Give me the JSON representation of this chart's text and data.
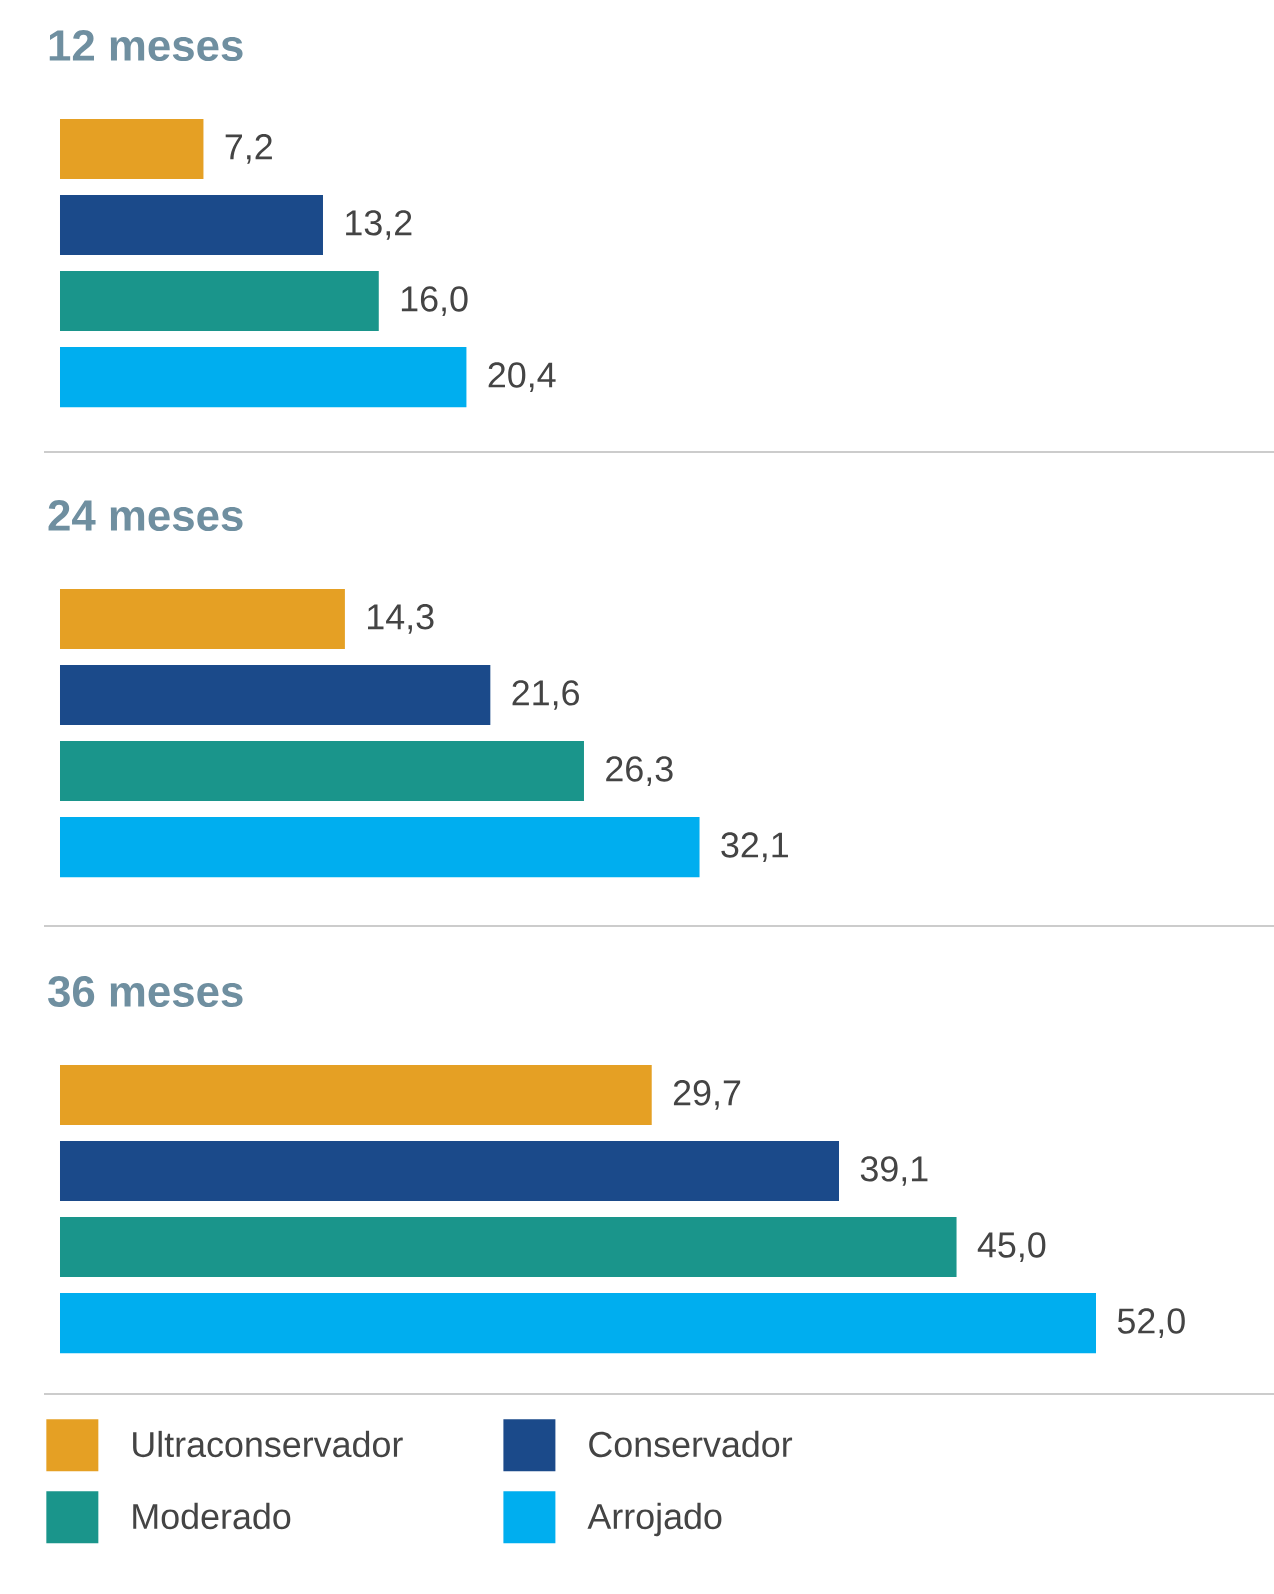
{
  "chart_data": [
    {
      "type": "bar",
      "orientation": "horizontal",
      "title": "12 meses",
      "categories": [
        null
      ],
      "tick_labels": false,
      "series": [
        {
          "color": "#e5a024",
          "values": [
            7.2
          ],
          "value_labels": [
            "7,2"
          ]
        },
        {
          "color": "#1b4a8a",
          "values": [
            13.2
          ],
          "value_labels": [
            "13,2"
          ]
        },
        {
          "color": "#1a958b",
          "values": [
            16.0
          ],
          "value_labels": [
            "16,0"
          ]
        },
        {
          "color": "#00aeef",
          "values": [
            20.4
          ],
          "value_labels": [
            "20,4"
          ]
        }
      ]
    },
    {
      "type": "bar",
      "orientation": "horizontal",
      "title": "24 meses",
      "categories": [
        null
      ],
      "tick_labels": false,
      "series": [
        {
          "color": "#e5a024",
          "values": [
            14.3
          ],
          "value_labels": [
            "14,3"
          ]
        },
        {
          "color": "#1b4a8a",
          "values": [
            21.6
          ],
          "value_labels": [
            "21,6"
          ]
        },
        {
          "color": "#1a958b",
          "values": [
            26.3
          ],
          "value_labels": [
            "26,3"
          ]
        },
        {
          "color": "#00aeef",
          "values": [
            32.1
          ],
          "value_labels": [
            "32,1"
          ]
        }
      ]
    },
    {
      "type": "bar",
      "orientation": "horizontal",
      "title": "36 meses",
      "categories": [
        null
      ],
      "tick_labels": false,
      "legend": "bottom",
      "series": [
        {
          "name": "Ultraconservador",
          "color": "#e5a024",
          "values": [
            29.7
          ],
          "value_labels": [
            "29,7"
          ]
        },
        {
          "name": "Conservador",
          "color": "#1b4a8a",
          "values": [
            39.1
          ],
          "value_labels": [
            "39,1"
          ]
        },
        {
          "name": "Moderado",
          "color": "#1a958b",
          "values": [
            45.0
          ],
          "value_labels": [
            "45,0"
          ]
        },
        {
          "name": "Arrojado",
          "color": "#00aeef",
          "values": [
            52.0
          ],
          "value_labels": [
            "52,0"
          ]
        }
      ]
    }
  ]
}
